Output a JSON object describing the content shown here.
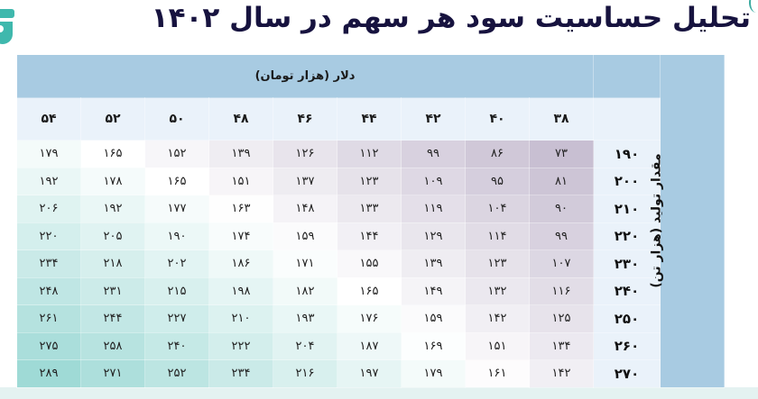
{
  "title": "تحلیل حساسیت سود هر سهم در سال ۱۴۰۲",
  "colors": {
    "title": "#17133f",
    "header": "#a8cbe2",
    "subheader": "#eaf2fa",
    "low": "#c8bfd2",
    "mid": "#ffffff",
    "high": "#9fdad6"
  },
  "table": {
    "column_group_label": "دلار (هزار تومان)",
    "row_group_label": "مقدار تولید (هزار تن)",
    "columns": [
      "۳۸",
      "۴۰",
      "۴۲",
      "۴۴",
      "۴۶",
      "۴۸",
      "۵۰",
      "۵۲",
      "۵۴"
    ],
    "rows": [
      {
        "label": "۱۹۰",
        "values": [
          "۷۳",
          "۸۶",
          "۹۹",
          "۱۱۲",
          "۱۲۶",
          "۱۳۹",
          "۱۵۲",
          "۱۶۵",
          "۱۷۹"
        ]
      },
      {
        "label": "۲۰۰",
        "values": [
          "۸۱",
          "۹۵",
          "۱۰۹",
          "۱۲۳",
          "۱۳۷",
          "۱۵۱",
          "۱۶۵",
          "۱۷۸",
          "۱۹۲"
        ]
      },
      {
        "label": "۲۱۰",
        "values": [
          "۹۰",
          "۱۰۴",
          "۱۱۹",
          "۱۳۳",
          "۱۴۸",
          "۱۶۳",
          "۱۷۷",
          "۱۹۲",
          "۲۰۶"
        ]
      },
      {
        "label": "۲۲۰",
        "values": [
          "۹۹",
          "۱۱۴",
          "۱۲۹",
          "۱۴۴",
          "۱۵۹",
          "۱۷۴",
          "۱۹۰",
          "۲۰۵",
          "۲۲۰"
        ]
      },
      {
        "label": "۲۳۰",
        "values": [
          "۱۰۷",
          "۱۲۳",
          "۱۳۹",
          "۱۵۵",
          "۱۷۱",
          "۱۸۶",
          "۲۰۲",
          "۲۱۸",
          "۲۳۴"
        ]
      },
      {
        "label": "۲۴۰",
        "values": [
          "۱۱۶",
          "۱۳۲",
          "۱۴۹",
          "۱۶۵",
          "۱۸۲",
          "۱۹۸",
          "۲۱۵",
          "۲۳۱",
          "۲۴۸"
        ]
      },
      {
        "label": "۲۵۰",
        "values": [
          "۱۲۵",
          "۱۴۲",
          "۱۵۹",
          "۱۷۶",
          "۱۹۳",
          "۲۱۰",
          "۲۲۷",
          "۲۴۴",
          "۲۶۱"
        ]
      },
      {
        "label": "۲۶۰",
        "values": [
          "۱۳۴",
          "۱۵۱",
          "۱۶۹",
          "۱۸۷",
          "۲۰۴",
          "۲۲۲",
          "۲۴۰",
          "۲۵۸",
          "۲۷۵"
        ]
      },
      {
        "label": "۲۷۰",
        "values": [
          "۱۴۲",
          "۱۶۱",
          "۱۷۹",
          "۱۹۷",
          "۲۱۶",
          "۲۳۴",
          "۲۵۲",
          "۲۷۱",
          "۲۸۹"
        ]
      }
    ]
  }
}
